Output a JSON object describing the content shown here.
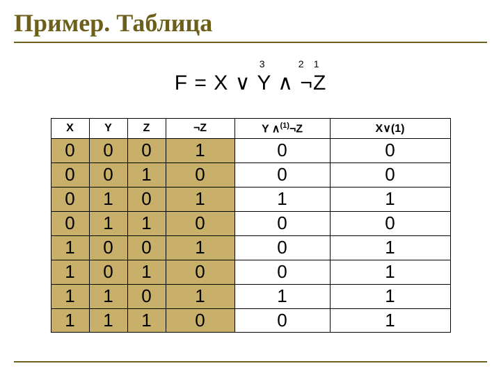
{
  "title": "Пример. Таблица",
  "formula": {
    "text": "F = X ∨ Y ∧ ¬Z",
    "sup3": "3",
    "sup2": "2",
    "sup1": "1"
  },
  "headers": {
    "x": "X",
    "y": "Y",
    "z": "Z",
    "nz": "¬Z",
    "y1_pre": "Y ∧",
    "y1_sup": "(1)",
    "y1_post": "¬Z",
    "x1": "X∨(1)"
  },
  "rows": [
    {
      "x": "0",
      "y": "0",
      "z": "0",
      "nz": "1",
      "y1": "0",
      "x1": "0"
    },
    {
      "x": "0",
      "y": "0",
      "z": "1",
      "nz": "0",
      "y1": "0",
      "x1": "0"
    },
    {
      "x": "0",
      "y": "1",
      "z": "0",
      "nz": "1",
      "y1": "1",
      "x1": "1"
    },
    {
      "x": "0",
      "y": "1",
      "z": "1",
      "nz": "0",
      "y1": "0",
      "x1": "0"
    },
    {
      "x": "1",
      "y": "0",
      "z": "0",
      "nz": "1",
      "y1": "0",
      "x1": "1"
    },
    {
      "x": "1",
      "y": "0",
      "z": "1",
      "nz": "0",
      "y1": "0",
      "x1": "1"
    },
    {
      "x": "1",
      "y": "1",
      "z": "0",
      "nz": "1",
      "y1": "1",
      "x1": "1"
    },
    {
      "x": "1",
      "y": "1",
      "z": "1",
      "nz": "0",
      "y1": "0",
      "x1": "1"
    }
  ],
  "highlight_cols": [
    "x",
    "y",
    "z",
    "nz"
  ],
  "colors": {
    "accent": "#6b5f1a",
    "highlight": "#c9b06a",
    "text": "#000000",
    "bg": "#ffffff"
  }
}
